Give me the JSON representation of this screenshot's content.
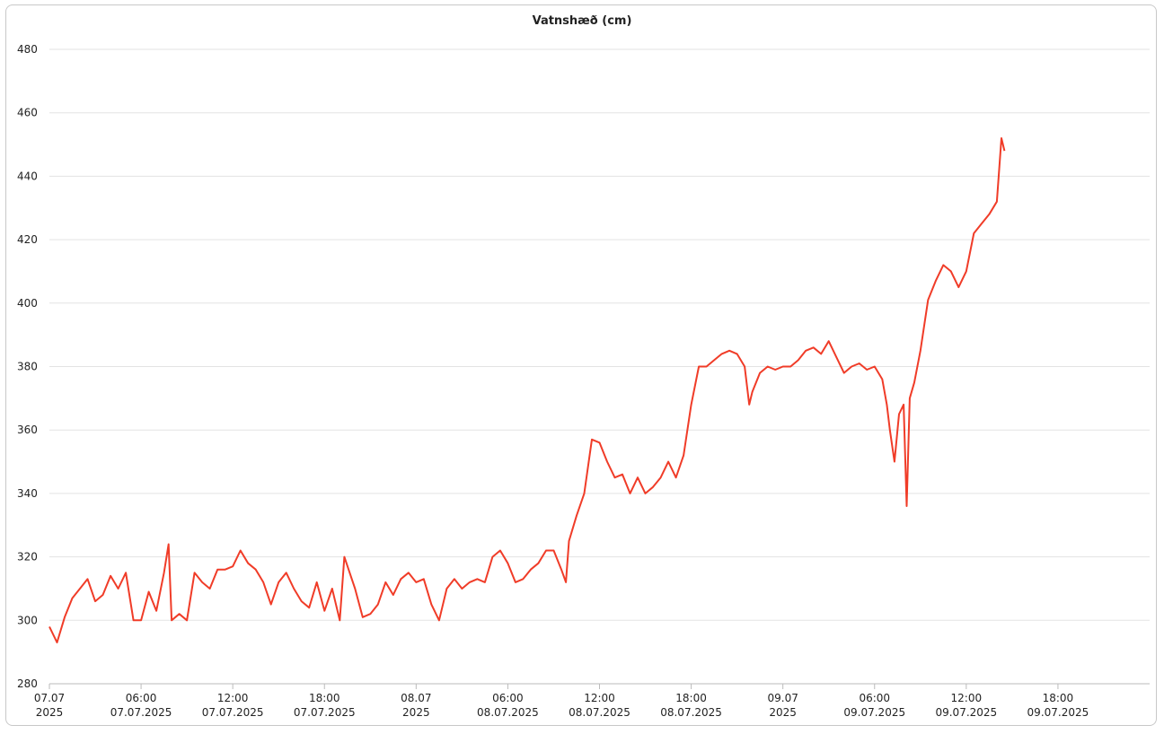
{
  "chart_data": {
    "type": "line",
    "title": "Vatnshæð (cm)",
    "ylim": [
      280,
      480
    ],
    "yticks": [
      280,
      300,
      320,
      340,
      360,
      380,
      400,
      420,
      440,
      460,
      480
    ],
    "grid": true,
    "xlim": [
      "2025-07-07T00:00",
      "2025-07-10T00:00"
    ],
    "xticks": [
      {
        "value": "2025-07-07T00:00",
        "label": [
          "07.07",
          "2025"
        ]
      },
      {
        "value": "2025-07-07T06:00",
        "label": [
          "06:00",
          "07.07.2025"
        ]
      },
      {
        "value": "2025-07-07T12:00",
        "label": [
          "12:00",
          "07.07.2025"
        ]
      },
      {
        "value": "2025-07-07T18:00",
        "label": [
          "18:00",
          "07.07.2025"
        ]
      },
      {
        "value": "2025-07-08T00:00",
        "label": [
          "08.07",
          "2025"
        ]
      },
      {
        "value": "2025-07-08T06:00",
        "label": [
          "06:00",
          "08.07.2025"
        ]
      },
      {
        "value": "2025-07-08T12:00",
        "label": [
          "12:00",
          "08.07.2025"
        ]
      },
      {
        "value": "2025-07-08T18:00",
        "label": [
          "18:00",
          "08.07.2025"
        ]
      },
      {
        "value": "2025-07-09T00:00",
        "label": [
          "09.07",
          "2025"
        ]
      },
      {
        "value": "2025-07-09T06:00",
        "label": [
          "06:00",
          "09.07.2025"
        ]
      },
      {
        "value": "2025-07-09T12:00",
        "label": [
          "12:00",
          "09.07.2025"
        ]
      },
      {
        "value": "2025-07-09T18:00",
        "label": [
          "18:00",
          "09.07.2025"
        ]
      }
    ],
    "x": [
      "2025-07-07T00:00",
      "2025-07-07T00:30",
      "2025-07-07T01:00",
      "2025-07-07T01:30",
      "2025-07-07T02:00",
      "2025-07-07T02:30",
      "2025-07-07T03:00",
      "2025-07-07T03:30",
      "2025-07-07T04:00",
      "2025-07-07T04:30",
      "2025-07-07T05:00",
      "2025-07-07T05:30",
      "2025-07-07T06:00",
      "2025-07-07T06:30",
      "2025-07-07T07:00",
      "2025-07-07T07:30",
      "2025-07-07T07:48",
      "2025-07-07T08:00",
      "2025-07-07T08:30",
      "2025-07-07T09:00",
      "2025-07-07T09:30",
      "2025-07-07T10:00",
      "2025-07-07T10:30",
      "2025-07-07T11:00",
      "2025-07-07T11:30",
      "2025-07-07T12:00",
      "2025-07-07T12:30",
      "2025-07-07T13:00",
      "2025-07-07T13:30",
      "2025-07-07T14:00",
      "2025-07-07T14:30",
      "2025-07-07T15:00",
      "2025-07-07T15:30",
      "2025-07-07T16:00",
      "2025-07-07T16:30",
      "2025-07-07T17:00",
      "2025-07-07T17:30",
      "2025-07-07T18:00",
      "2025-07-07T18:30",
      "2025-07-07T19:00",
      "2025-07-07T19:18",
      "2025-07-07T20:00",
      "2025-07-07T20:30",
      "2025-07-07T21:00",
      "2025-07-07T21:30",
      "2025-07-07T22:00",
      "2025-07-07T22:30",
      "2025-07-07T23:00",
      "2025-07-07T23:30",
      "2025-07-08T00:00",
      "2025-07-08T00:30",
      "2025-07-08T01:00",
      "2025-07-08T01:30",
      "2025-07-08T02:00",
      "2025-07-08T02:30",
      "2025-07-08T03:00",
      "2025-07-08T03:30",
      "2025-07-08T04:00",
      "2025-07-08T04:30",
      "2025-07-08T05:00",
      "2025-07-08T05:30",
      "2025-07-08T06:00",
      "2025-07-08T06:30",
      "2025-07-08T07:00",
      "2025-07-08T07:30",
      "2025-07-08T08:00",
      "2025-07-08T08:30",
      "2025-07-08T09:00",
      "2025-07-08T09:30",
      "2025-07-08T09:48",
      "2025-07-08T10:00",
      "2025-07-08T10:30",
      "2025-07-08T11:00",
      "2025-07-08T11:30",
      "2025-07-08T12:00",
      "2025-07-08T12:30",
      "2025-07-08T13:00",
      "2025-07-08T13:30",
      "2025-07-08T14:00",
      "2025-07-08T14:30",
      "2025-07-08T15:00",
      "2025-07-08T15:30",
      "2025-07-08T16:00",
      "2025-07-08T16:30",
      "2025-07-08T17:00",
      "2025-07-08T17:30",
      "2025-07-08T18:00",
      "2025-07-08T18:30",
      "2025-07-08T19:00",
      "2025-07-08T19:30",
      "2025-07-08T20:00",
      "2025-07-08T20:30",
      "2025-07-08T21:00",
      "2025-07-08T21:30",
      "2025-07-08T21:48",
      "2025-07-08T22:00",
      "2025-07-08T22:30",
      "2025-07-08T23:00",
      "2025-07-08T23:30",
      "2025-07-09T00:00",
      "2025-07-09T00:30",
      "2025-07-09T01:00",
      "2025-07-09T01:30",
      "2025-07-09T02:00",
      "2025-07-09T02:30",
      "2025-07-09T03:00",
      "2025-07-09T03:30",
      "2025-07-09T04:00",
      "2025-07-09T04:30",
      "2025-07-09T05:00",
      "2025-07-09T05:30",
      "2025-07-09T06:00",
      "2025-07-09T06:30",
      "2025-07-09T06:48",
      "2025-07-09T07:00",
      "2025-07-09T07:18",
      "2025-07-09T07:36",
      "2025-07-09T07:54",
      "2025-07-09T08:06",
      "2025-07-09T08:18",
      "2025-07-09T08:36",
      "2025-07-09T09:00",
      "2025-07-09T09:30",
      "2025-07-09T10:00",
      "2025-07-09T10:30",
      "2025-07-09T11:00",
      "2025-07-09T11:30",
      "2025-07-09T12:00",
      "2025-07-09T12:30",
      "2025-07-09T13:00",
      "2025-07-09T13:30",
      "2025-07-09T14:00",
      "2025-07-09T14:18",
      "2025-07-09T14:30"
    ],
    "series": [
      {
        "name": "Vatnshæð",
        "color": "#f03c28",
        "values": [
          298,
          293,
          301,
          307,
          310,
          313,
          306,
          308,
          314,
          310,
          315,
          300,
          300,
          309,
          303,
          315,
          324,
          300,
          302,
          300,
          315,
          312,
          310,
          316,
          316,
          317,
          322,
          318,
          316,
          312,
          305,
          312,
          315,
          310,
          306,
          304,
          312,
          303,
          310,
          300,
          320,
          310,
          301,
          302,
          305,
          312,
          308,
          313,
          315,
          312,
          313,
          305,
          300,
          310,
          313,
          310,
          312,
          313,
          312,
          320,
          322,
          318,
          312,
          313,
          316,
          318,
          322,
          322,
          316,
          312,
          325,
          333,
          340,
          357,
          356,
          350,
          345,
          346,
          340,
          345,
          340,
          342,
          345,
          350,
          345,
          352,
          368,
          380,
          380,
          382,
          384,
          385,
          384,
          380,
          368,
          372,
          378,
          380,
          379,
          380,
          380,
          382,
          385,
          386,
          384,
          388,
          383,
          378,
          380,
          381,
          379,
          380,
          376,
          368,
          360,
          350,
          365,
          368,
          336,
          370,
          375,
          385,
          401,
          407,
          412,
          410,
          405,
          410,
          422,
          425,
          428,
          432,
          452,
          448
        ]
      }
    ]
  }
}
